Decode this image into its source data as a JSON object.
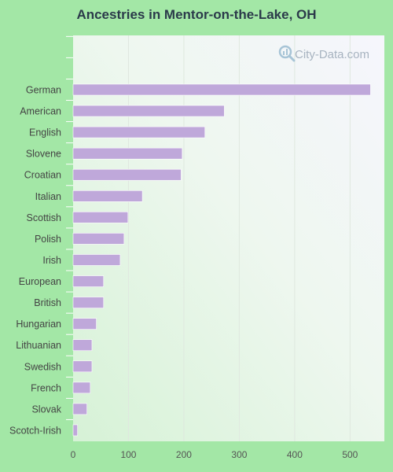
{
  "chart_data": {
    "type": "bar",
    "orientation": "horizontal",
    "title": "Ancestries in Mentor-on-the-Lake, OH",
    "categories": [
      "German",
      "American",
      "English",
      "Slovene",
      "Croatian",
      "Italian",
      "Scottish",
      "Polish",
      "Irish",
      "European",
      "British",
      "Hungarian",
      "Lithuanian",
      "Swedish",
      "French",
      "Slovak",
      "Scotch-Irish"
    ],
    "values": [
      537,
      273,
      238,
      197,
      195,
      125,
      99,
      92,
      85,
      55,
      55,
      42,
      34,
      34,
      31,
      25,
      8
    ],
    "xlim": [
      0,
      560
    ],
    "xticks": [
      0,
      100,
      200,
      300,
      400,
      500
    ],
    "grid": true,
    "colors": {
      "bar": "#bfa8da",
      "grid": "#dfe8df",
      "axis_text": "#555555",
      "label_text": "#444444"
    }
  },
  "watermark": {
    "text": "City-Data.com",
    "icon": "search-magnifier-icon"
  }
}
